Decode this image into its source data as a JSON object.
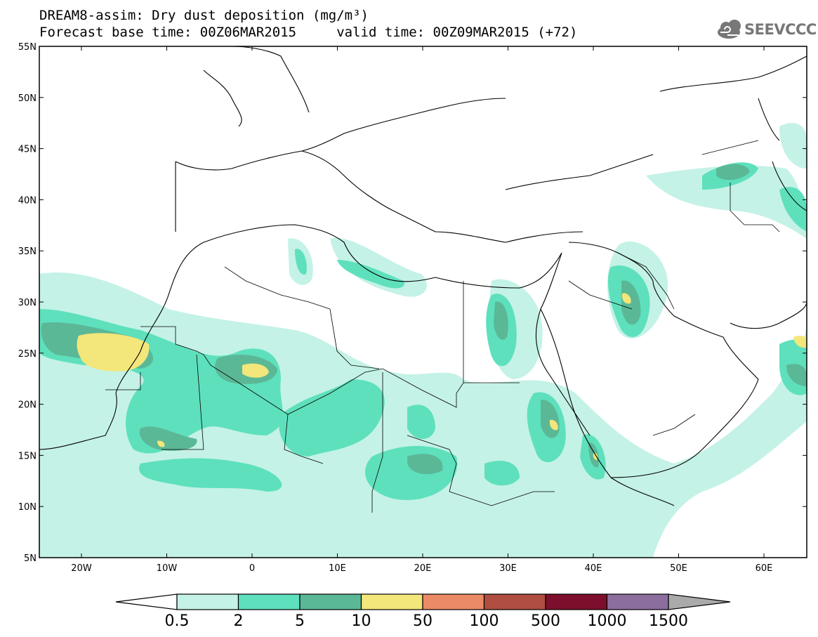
{
  "header": {
    "title_line1": "DREAM8-assim: Dry dust deposition (mg/m³)",
    "title_line2": "Forecast base time: 00Z06MAR2015     valid time: 00Z09MAR2015 (+72)",
    "logo_text": "SEEVCCC"
  },
  "axes": {
    "lat_labels": [
      "55N",
      "50N",
      "45N",
      "40N",
      "35N",
      "30N",
      "25N",
      "20N",
      "15N",
      "10N",
      "5N"
    ],
    "lon_labels": [
      "20W",
      "10W",
      "0",
      "10E",
      "20E",
      "30E",
      "40E",
      "50E",
      "60E"
    ]
  },
  "colorbar": {
    "labels": [
      "0.5",
      "2",
      "5",
      "10",
      "50",
      "100",
      "500",
      "1000",
      "1500"
    ],
    "colors": [
      "#c4f2e6",
      "#5ee0bd",
      "#5bb896",
      "#f3e67a",
      "#eb8a66",
      "#b04e42",
      "#7d0f2c",
      "#8c6e9e"
    ]
  }
}
